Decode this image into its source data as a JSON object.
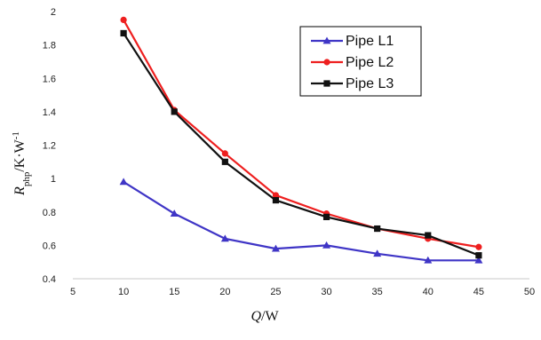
{
  "chart_data": {
    "type": "line",
    "x": [
      10,
      15,
      20,
      25,
      30,
      35,
      40,
      45
    ],
    "xlim": [
      5,
      50
    ],
    "ylim": [
      0.4,
      2
    ],
    "x_ticks": [
      "5",
      "10",
      "15",
      "20",
      "25",
      "30",
      "35",
      "40",
      "45",
      "50"
    ],
    "y_ticks": [
      "0.4",
      "0.6",
      "0.8",
      "1",
      "1.2",
      "1.4",
      "1.6",
      "1.8",
      "2"
    ],
    "xlabel": "Q/W",
    "ylabel": "Rphp/K·W-1",
    "grid": false,
    "legend_position": "top-right",
    "series": [
      {
        "name": "Pipe L1",
        "color": "#3f35c6",
        "marker": "triangle",
        "values": [
          0.98,
          0.79,
          0.64,
          0.58,
          0.6,
          0.55,
          0.51,
          0.51
        ]
      },
      {
        "name": "Pipe L2",
        "color": "#ee1f1f",
        "marker": "circle",
        "values": [
          1.95,
          1.41,
          1.15,
          0.9,
          0.79,
          0.7,
          0.64,
          0.59
        ]
      },
      {
        "name": "Pipe L3",
        "color": "#111111",
        "marker": "square",
        "values": [
          1.87,
          1.4,
          1.1,
          0.87,
          0.77,
          0.7,
          0.66,
          0.54
        ]
      }
    ]
  }
}
